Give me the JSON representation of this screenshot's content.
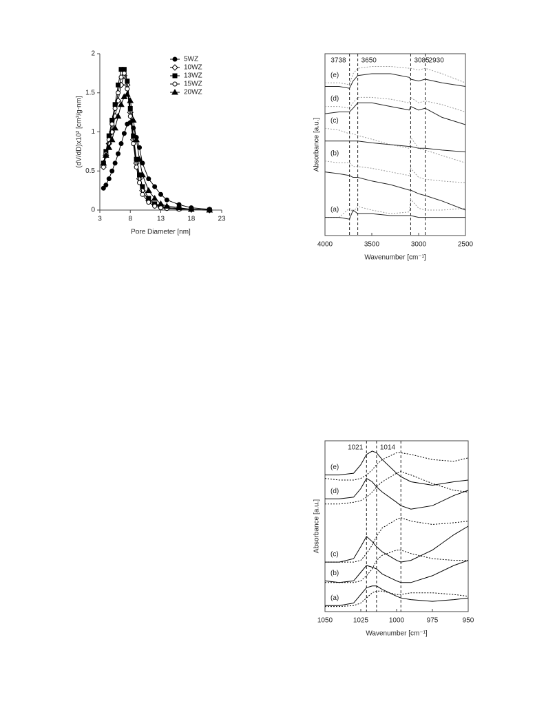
{
  "chart_data": [
    {
      "type": "line",
      "xlabel": "Pore Diameter [nm]",
      "ylabel": "(dV/dD)x10² [cm³/g-nm]",
      "xlim": [
        3,
        23
      ],
      "xticks": [
        3,
        8,
        13,
        18,
        23
      ],
      "ylim": [
        0,
        2
      ],
      "yticks": [
        0,
        0.5,
        1,
        1.5,
        2
      ],
      "frame": "axes",
      "legend": "upper right",
      "x": [
        3.6,
        4.0,
        4.5,
        5.0,
        5.5,
        6.0,
        6.5,
        7.0,
        7.5,
        8.0,
        8.5,
        9.0,
        9.5,
        10,
        11,
        12,
        13,
        14,
        16,
        18,
        21
      ],
      "series": [
        {
          "name": "5WZ",
          "color": "#000000",
          "marker": "circle",
          "filled": true,
          "values": [
            0.28,
            0.32,
            0.4,
            0.5,
            0.6,
            0.72,
            0.85,
            0.98,
            1.1,
            1.12,
            1.05,
            0.93,
            0.8,
            0.6,
            0.4,
            0.3,
            0.2,
            0.13,
            0.07,
            0.03,
            0.01
          ]
        },
        {
          "name": "10WZ",
          "color": "#000000",
          "marker": "diamond",
          "filled": false,
          "values": [
            0.55,
            0.7,
            0.85,
            1.0,
            1.2,
            1.4,
            1.6,
            1.72,
            1.6,
            1.25,
            0.9,
            0.6,
            0.4,
            0.25,
            0.12,
            0.07,
            0.04,
            0.03,
            0.02,
            0.01,
            0.0
          ]
        },
        {
          "name": "13WZ",
          "color": "#000000",
          "marker": "square",
          "filled": true,
          "values": [
            0.6,
            0.75,
            0.95,
            1.15,
            1.35,
            1.6,
            1.8,
            1.8,
            1.65,
            1.3,
            0.95,
            0.65,
            0.45,
            0.3,
            0.15,
            0.08,
            0.05,
            0.03,
            0.02,
            0.01,
            0.0
          ]
        },
        {
          "name": "15WZ",
          "color": "#000000",
          "marker": "circle",
          "filled": false,
          "values": [
            0.6,
            0.72,
            0.9,
            1.1,
            1.3,
            1.5,
            1.7,
            1.75,
            1.55,
            1.2,
            0.85,
            0.55,
            0.35,
            0.2,
            0.1,
            0.05,
            0.03,
            0.02,
            0.01,
            0.01,
            0.0
          ]
        },
        {
          "name": "20WZ",
          "color": "#000000",
          "marker": "triangle",
          "filled": true,
          "values": [
            0.6,
            0.7,
            0.8,
            0.9,
            1.05,
            1.2,
            1.35,
            1.45,
            1.48,
            1.4,
            1.15,
            0.9,
            0.65,
            0.45,
            0.25,
            0.15,
            0.08,
            0.05,
            0.03,
            0.01,
            0.0
          ]
        }
      ]
    },
    {
      "type": "line",
      "xlabel": "Wavenumber [cm⁻¹]",
      "ylabel": "Absorbance [a.u.]",
      "xlim": [
        4000,
        2500
      ],
      "xticks": [
        4000,
        3500,
        3000,
        2500
      ],
      "ylim": [
        0,
        10
      ],
      "frame": "box",
      "vlines": [
        3738,
        3650,
        3085,
        2930
      ],
      "vline_labeled": [
        true,
        true,
        true,
        true
      ],
      "labels": [
        "(a)",
        "(b)",
        "(c)",
        "(d)",
        "(e)"
      ],
      "x": [
        4000,
        3850,
        3738,
        3700,
        3650,
        3500,
        3300,
        3100,
        3085,
        3000,
        2930,
        2750,
        2500
      ],
      "series": [
        {
          "color": "#999999",
          "dash": true,
          "values": [
            1.0,
            1.0,
            1.5,
            1.3,
            1.6,
            1.4,
            1.2,
            1.3,
            2.0,
            1.5,
            1.4,
            1.4,
            1.5
          ]
        },
        {
          "color": "#222222",
          "dash": false,
          "values": [
            1.0,
            1.0,
            0.9,
            1.4,
            1.2,
            1.2,
            1.1,
            1.1,
            1.1,
            1.0,
            1.0,
            1.0,
            1.0
          ]
        },
        {
          "color": "#999999",
          "dash": true,
          "values": [
            4.1,
            4.0,
            4.0,
            3.8,
            3.8,
            3.7,
            3.5,
            3.3,
            3.7,
            3.2,
            3.1,
            3.0,
            2.9
          ]
        },
        {
          "color": "#222222",
          "dash": false,
          "values": [
            3.5,
            3.4,
            3.3,
            3.2,
            3.2,
            3.0,
            2.8,
            2.5,
            2.5,
            2.3,
            2.2,
            1.9,
            1.4
          ]
        },
        {
          "color": "#999999",
          "dash": true,
          "values": [
            5.9,
            5.8,
            5.6,
            5.6,
            5.5,
            5.3,
            5.0,
            4.8,
            5.4,
            4.8,
            4.7,
            4.4,
            4.0
          ]
        },
        {
          "color": "#222222",
          "dash": false,
          "values": [
            5.2,
            5.2,
            5.2,
            5.2,
            5.2,
            5.1,
            5.0,
            4.9,
            4.9,
            4.8,
            4.8,
            4.7,
            4.6
          ]
        },
        {
          "color": "#999999",
          "dash": true,
          "values": [
            7.1,
            7.1,
            7.0,
            7.3,
            7.6,
            7.6,
            7.5,
            7.3,
            7.6,
            7.3,
            7.4,
            7.2,
            6.8
          ]
        },
        {
          "color": "#222222",
          "dash": false,
          "values": [
            6.7,
            6.8,
            6.8,
            7.0,
            7.3,
            7.3,
            7.1,
            6.9,
            7.1,
            6.9,
            7.0,
            6.5,
            6.1
          ]
        },
        {
          "color": "#999999",
          "dash": true,
          "values": [
            8.4,
            8.4,
            8.3,
            8.9,
            9.2,
            9.3,
            9.3,
            9.2,
            9.2,
            9.1,
            9.2,
            8.9,
            8.4
          ]
        },
        {
          "color": "#222222",
          "dash": false,
          "values": [
            8.2,
            8.2,
            8.1,
            8.5,
            8.8,
            8.9,
            8.9,
            8.7,
            8.6,
            8.5,
            8.6,
            8.4,
            8.2
          ]
        }
      ]
    },
    {
      "type": "line",
      "xlabel": "Wavenumber [cm⁻¹]",
      "ylabel": "Absorbance [a.u.]",
      "xlim": [
        1050,
        950
      ],
      "xticks": [
        1050,
        1025,
        1000,
        975,
        950
      ],
      "ylim": [
        0,
        10
      ],
      "frame": "box",
      "vlines": [
        1021,
        1014,
        997
      ],
      "vline_labeled": [
        true,
        true,
        false
      ],
      "labels": [
        "(a)",
        "(b)",
        "(c)",
        "(d)",
        "(e)"
      ],
      "x": [
        1050,
        1040,
        1030,
        1025,
        1021,
        1017,
        1014,
        1010,
        1000,
        997,
        990,
        975,
        960,
        950
      ],
      "series": [
        {
          "color": "#000000",
          "dash": false,
          "values": [
            0.35,
            0.35,
            0.5,
            1.0,
            1.4,
            1.5,
            1.5,
            1.3,
            0.9,
            0.8,
            0.7,
            0.6,
            0.7,
            0.8
          ]
        },
        {
          "color": "#000000",
          "dash": true,
          "values": [
            0.3,
            0.3,
            0.35,
            0.5,
            0.8,
            1.1,
            1.2,
            1.2,
            1.0,
            1.0,
            1.1,
            1.1,
            1.0,
            0.9
          ]
        },
        {
          "color": "#000000",
          "dash": false,
          "values": [
            1.8,
            1.7,
            1.8,
            2.3,
            2.7,
            2.6,
            2.5,
            2.2,
            1.8,
            1.7,
            1.7,
            2.1,
            2.7,
            3.0
          ]
        },
        {
          "color": "#000000",
          "dash": true,
          "values": [
            1.7,
            1.7,
            1.7,
            1.8,
            2.1,
            2.5,
            3.0,
            3.3,
            3.6,
            3.6,
            3.4,
            3.1,
            3.0,
            3.0
          ]
        },
        {
          "color": "#000000",
          "dash": false,
          "values": [
            2.9,
            2.9,
            3.1,
            3.8,
            4.4,
            4.1,
            3.8,
            3.5,
            3.0,
            2.9,
            3.0,
            3.6,
            4.5,
            5.0
          ]
        },
        {
          "color": "#000000",
          "dash": true,
          "values": [
            2.9,
            2.9,
            2.9,
            3.0,
            3.4,
            3.9,
            4.4,
            4.9,
            5.4,
            5.5,
            5.3,
            5.1,
            5.2,
            5.3
          ]
        },
        {
          "color": "#000000",
          "dash": false,
          "values": [
            6.6,
            6.6,
            6.7,
            7.2,
            7.8,
            7.6,
            7.3,
            7.0,
            6.4,
            6.2,
            6.0,
            6.2,
            6.8,
            7.1
          ]
        },
        {
          "color": "#000000",
          "dash": true,
          "values": [
            6.3,
            6.3,
            6.4,
            6.5,
            6.7,
            7.0,
            7.3,
            7.6,
            8.1,
            8.2,
            8.0,
            7.5,
            7.1,
            7.0
          ]
        },
        {
          "color": "#000000",
          "dash": false,
          "values": [
            8.0,
            8.0,
            8.1,
            8.6,
            9.2,
            9.4,
            9.3,
            8.9,
            8.1,
            7.9,
            7.6,
            7.4,
            7.6,
            7.7
          ]
        },
        {
          "color": "#000000",
          "dash": true,
          "values": [
            7.8,
            7.7,
            7.7,
            7.8,
            8.0,
            8.3,
            8.6,
            8.9,
            9.3,
            9.3,
            9.2,
            8.9,
            8.8,
            9.0
          ]
        }
      ]
    }
  ]
}
